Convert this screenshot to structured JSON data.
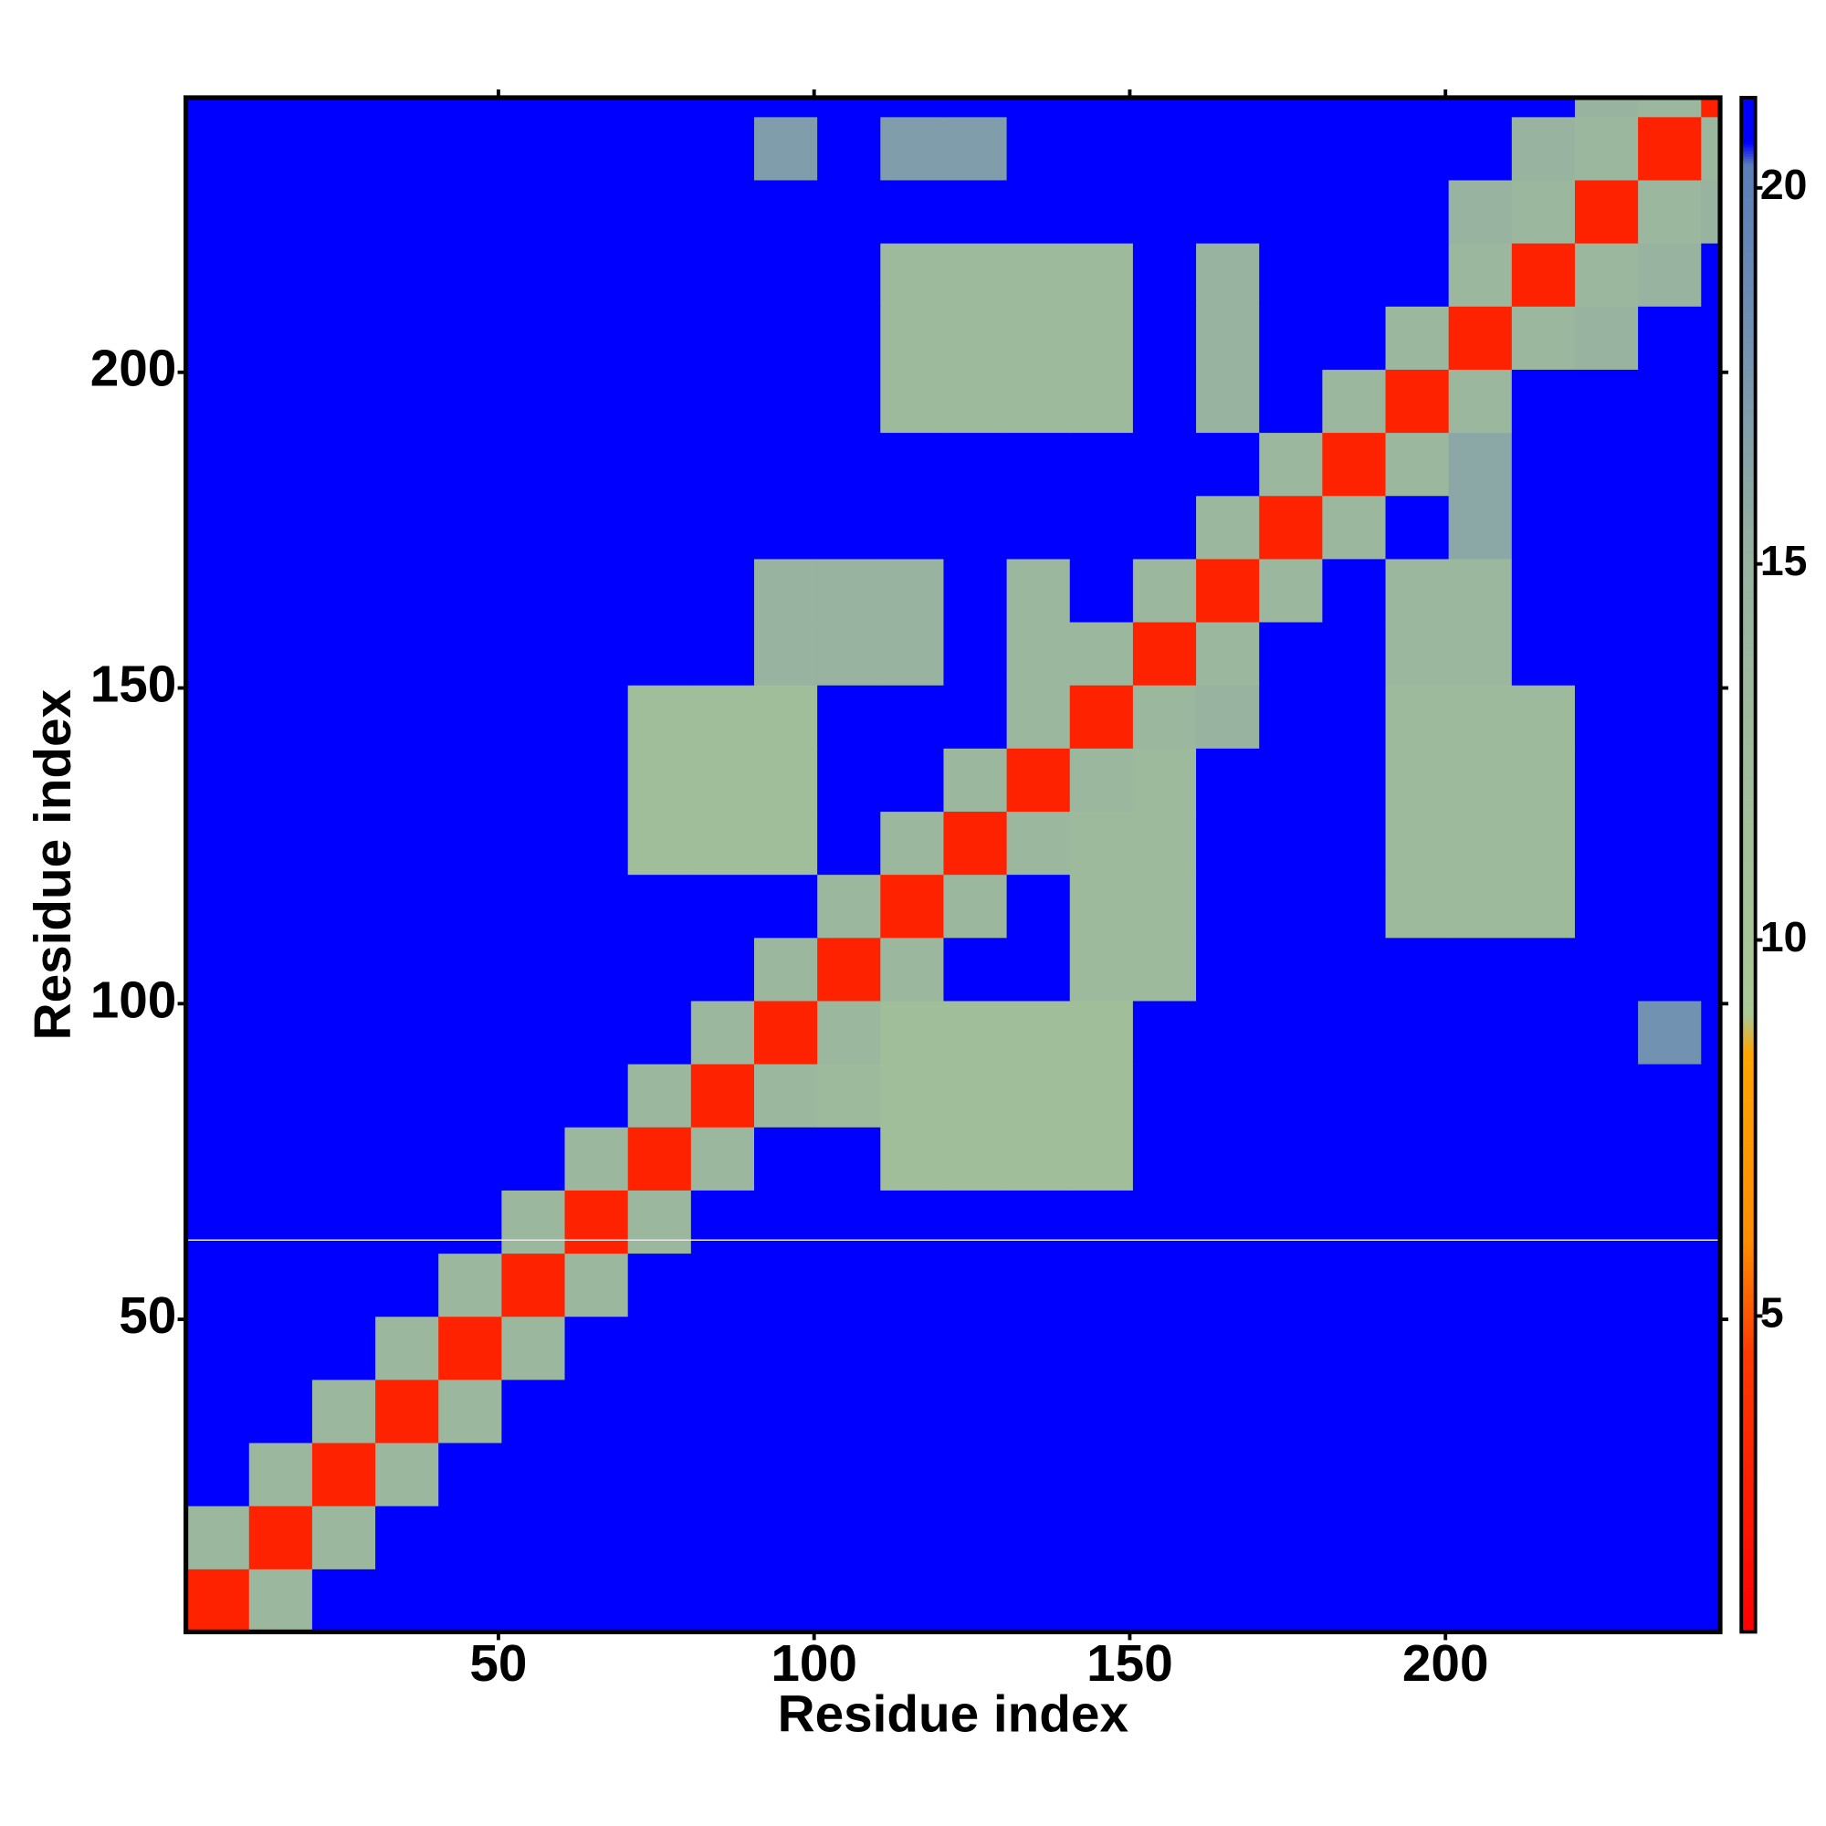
{
  "chart_data": {
    "type": "heatmap",
    "x_label": "Residue index",
    "y_label": "Residue index",
    "xlim": [
      0.5,
      243.5
    ],
    "ylim": [
      0.5,
      243.5
    ],
    "xticks": [
      50,
      100,
      150,
      200
    ],
    "yticks": [
      50,
      100,
      150,
      200
    ],
    "xbins": [
      0.5,
      10.5,
      20.5,
      30.5,
      40.5,
      50.5,
      60.5,
      70.5,
      80.5,
      90.5,
      100.5,
      110.5,
      120.5,
      130.5,
      140.5,
      150.5,
      160.5,
      170.5,
      180.5,
      190.5,
      200.5,
      210.5,
      220.5,
      230.5,
      240.5,
      243.5
    ],
    "ybins": [
      0.5,
      10.5,
      20.5,
      30.5,
      40.5,
      50.5,
      60.5,
      70.5,
      80.5,
      90.5,
      100.5,
      110.5,
      120.5,
      130.5,
      140.5,
      150.5,
      160.5,
      170.5,
      180.5,
      190.5,
      200.5,
      210.5,
      220.5,
      230.5,
      240.5,
      243.5
    ],
    "zlim": [
      0.8,
      21.2
    ],
    "zticks": [
      5,
      10,
      15,
      20
    ],
    "colorscale": [
      [
        0.8,
        "#ff0000"
      ],
      [
        4.5,
        "#ff3a00"
      ],
      [
        6,
        "#ff8c00"
      ],
      [
        8.5,
        "#ffa500"
      ],
      [
        9,
        "#a9c995"
      ],
      [
        15,
        "#98b3a0"
      ],
      [
        18.5,
        "#6c8cb4"
      ],
      [
        20.3,
        "#5a7fb8"
      ],
      [
        20.6,
        "#0000ff"
      ],
      [
        21.2,
        "#0000ff"
      ]
    ],
    "values": [
      [
        3,
        14,
        21,
        21,
        21,
        21,
        21,
        21,
        21,
        21,
        21,
        21,
        21,
        21,
        21,
        21,
        21,
        21,
        21,
        21,
        21,
        21,
        21,
        21,
        21
      ],
      [
        14,
        3,
        14,
        21,
        21,
        21,
        21,
        21,
        21,
        21,
        21,
        21,
        21,
        21,
        21,
        21,
        21,
        21,
        21,
        21,
        21,
        21,
        21,
        21,
        21
      ],
      [
        21,
        14,
        3,
        14,
        21,
        21,
        21,
        21,
        21,
        21,
        21,
        21,
        21,
        21,
        21,
        21,
        21,
        21,
        21,
        21,
        21,
        21,
        21,
        21,
        21
      ],
      [
        21,
        21,
        14,
        3,
        14,
        21,
        21,
        21,
        21,
        21,
        21,
        21,
        21,
        21,
        21,
        21,
        21,
        21,
        21,
        21,
        21,
        21,
        21,
        21,
        21
      ],
      [
        21,
        21,
        21,
        14,
        3,
        14,
        21,
        21,
        21,
        21,
        21,
        21,
        21,
        21,
        21,
        21,
        21,
        21,
        21,
        21,
        21,
        21,
        21,
        21,
        21
      ],
      [
        21,
        21,
        21,
        21,
        14,
        3,
        14,
        21,
        21,
        21,
        21,
        21,
        21,
        21,
        21,
        21,
        21,
        21,
        21,
        21,
        21,
        21,
        21,
        21,
        21
      ],
      [
        21,
        21,
        21,
        21,
        21,
        14,
        3,
        14,
        21,
        21,
        21,
        21,
        21,
        21,
        21,
        21,
        21,
        21,
        21,
        21,
        21,
        21,
        21,
        21,
        21
      ],
      [
        21,
        21,
        21,
        21,
        21,
        21,
        14,
        3,
        14,
        21,
        21,
        12,
        12,
        12,
        12,
        21,
        21,
        21,
        21,
        21,
        21,
        21,
        21,
        21,
        21
      ],
      [
        21,
        21,
        21,
        21,
        21,
        21,
        21,
        14,
        3,
        14,
        13,
        12,
        12,
        12,
        12,
        21,
        21,
        21,
        21,
        21,
        21,
        21,
        21,
        21,
        21
      ],
      [
        21,
        21,
        21,
        21,
        21,
        21,
        21,
        21,
        14,
        3,
        14,
        12,
        12,
        12,
        12,
        21,
        21,
        21,
        21,
        21,
        21,
        21,
        21,
        18,
        21
      ],
      [
        21,
        21,
        21,
        21,
        21,
        21,
        21,
        21,
        21,
        14,
        3,
        14,
        21,
        21,
        13,
        13,
        21,
        21,
        21,
        21,
        21,
        21,
        21,
        21,
        21
      ],
      [
        21,
        21,
        21,
        21,
        21,
        21,
        21,
        21,
        21,
        21,
        14,
        3,
        14,
        21,
        13,
        13,
        21,
        21,
        21,
        13,
        13,
        13,
        21,
        21,
        21
      ],
      [
        21,
        21,
        21,
        21,
        21,
        21,
        21,
        12,
        12,
        12,
        21,
        14,
        3,
        14,
        13,
        13,
        21,
        21,
        21,
        13,
        13,
        13,
        21,
        21,
        21
      ],
      [
        21,
        21,
        21,
        21,
        21,
        21,
        21,
        12,
        12,
        12,
        21,
        21,
        14,
        3,
        14,
        13,
        21,
        21,
        21,
        13,
        13,
        13,
        21,
        21,
        21
      ],
      [
        21,
        21,
        21,
        21,
        21,
        21,
        21,
        12,
        12,
        12,
        21,
        21,
        21,
        14,
        3,
        14,
        15,
        21,
        21,
        13,
        13,
        13,
        21,
        21,
        21
      ],
      [
        21,
        21,
        21,
        21,
        21,
        21,
        21,
        21,
        21,
        15,
        15,
        15,
        21,
        14,
        14,
        3,
        14,
        21,
        21,
        14,
        14,
        21,
        21,
        21,
        21
      ],
      [
        21,
        21,
        21,
        21,
        21,
        21,
        21,
        21,
        21,
        15,
        15,
        15,
        21,
        14,
        21,
        14,
        3,
        14,
        21,
        14,
        14,
        21,
        21,
        21,
        21
      ],
      [
        21,
        21,
        21,
        21,
        21,
        21,
        21,
        21,
        21,
        21,
        21,
        21,
        21,
        21,
        21,
        21,
        14,
        3,
        14,
        21,
        16,
        21,
        21,
        21,
        21
      ],
      [
        21,
        21,
        21,
        21,
        21,
        21,
        21,
        21,
        21,
        21,
        21,
        21,
        21,
        21,
        21,
        21,
        21,
        14,
        3,
        14,
        16,
        21,
        21,
        21,
        21
      ],
      [
        21,
        21,
        21,
        21,
        21,
        21,
        21,
        21,
        21,
        21,
        21,
        13,
        13,
        13,
        13,
        21,
        15,
        21,
        14,
        3,
        14,
        21,
        21,
        21,
        21
      ],
      [
        21,
        21,
        21,
        21,
        21,
        21,
        21,
        21,
        21,
        21,
        21,
        13,
        13,
        13,
        13,
        21,
        15,
        21,
        21,
        14,
        3,
        14,
        15,
        21,
        21
      ],
      [
        21,
        21,
        21,
        21,
        21,
        21,
        21,
        21,
        21,
        21,
        21,
        13,
        13,
        13,
        13,
        21,
        15,
        21,
        21,
        21,
        14,
        3,
        14,
        15,
        21
      ],
      [
        21,
        21,
        21,
        21,
        21,
        21,
        21,
        21,
        21,
        21,
        21,
        21,
        21,
        21,
        21,
        21,
        21,
        21,
        21,
        21,
        15,
        14,
        3,
        14,
        15
      ],
      [
        21,
        21,
        21,
        21,
        21,
        21,
        21,
        21,
        21,
        17,
        21,
        17,
        17,
        21,
        21,
        21,
        21,
        21,
        21,
        21,
        21,
        15,
        14,
        3,
        14
      ],
      [
        21,
        21,
        21,
        21,
        21,
        21,
        21,
        21,
        21,
        21,
        21,
        21,
        21,
        21,
        21,
        21,
        21,
        21,
        21,
        21,
        21,
        21,
        15,
        14,
        3
      ]
    ]
  }
}
